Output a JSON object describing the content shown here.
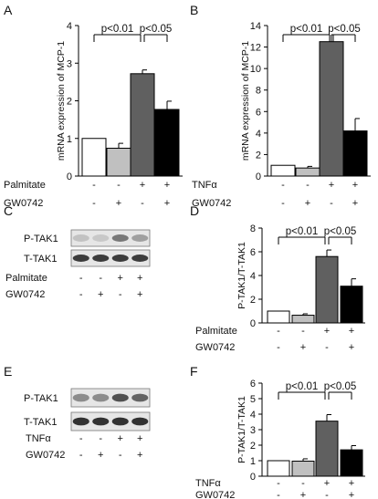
{
  "figure": {
    "panels": [
      "A",
      "B",
      "C",
      "D",
      "E",
      "F"
    ]
  },
  "chart_data": [
    {
      "panel": "A",
      "type": "bar",
      "ylabel": "mRNA expression of MCP-1",
      "ylim": [
        0,
        4
      ],
      "yticks": [
        0,
        1,
        2,
        3,
        4
      ],
      "values": [
        1.0,
        0.74,
        2.72,
        1.77
      ],
      "errors": [
        0,
        0.13,
        0.1,
        0.22
      ],
      "bar_colors": [
        "#ffffff",
        "#c0c0c0",
        "#606060",
        "#000000"
      ],
      "conditions": [
        {
          "name": "Palmitate",
          "marks": [
            "-",
            "-",
            "+",
            "+"
          ]
        },
        {
          "name": "GW0742",
          "marks": [
            "-",
            "+",
            "-",
            "+"
          ]
        }
      ],
      "significance": [
        {
          "label": "p<0.01",
          "from": 0,
          "to": 2
        },
        {
          "label": "p<0.05",
          "from": 2,
          "to": 3
        }
      ]
    },
    {
      "panel": "B",
      "type": "bar",
      "ylabel": "mRNA expression of MCP-1",
      "ylim": [
        0,
        14
      ],
      "yticks": [
        0,
        2,
        4,
        6,
        8,
        10,
        12,
        14
      ],
      "values": [
        1.0,
        0.75,
        12.5,
        4.2
      ],
      "errors": [
        0,
        0.15,
        0.65,
        1.15
      ],
      "bar_colors": [
        "#ffffff",
        "#c0c0c0",
        "#606060",
        "#000000"
      ],
      "conditions": [
        {
          "name": "TNFα",
          "marks": [
            "-",
            "-",
            "+",
            "+"
          ]
        },
        {
          "name": "GW0742",
          "marks": [
            "-",
            "+",
            "-",
            "+"
          ]
        }
      ],
      "significance": [
        {
          "label": "p<0.01",
          "from": 0,
          "to": 2
        },
        {
          "label": "p<0.05",
          "from": 2,
          "to": 3
        }
      ]
    },
    {
      "panel": "D",
      "type": "bar",
      "ylabel": "P-TAK1/T-TAK1",
      "ylim": [
        0,
        8
      ],
      "yticks": [
        0,
        2,
        4,
        6,
        8
      ],
      "values": [
        1.0,
        0.65,
        5.6,
        3.1
      ],
      "errors": [
        0,
        0.12,
        0.55,
        0.62
      ],
      "bar_colors": [
        "#ffffff",
        "#c0c0c0",
        "#606060",
        "#000000"
      ],
      "conditions": [
        {
          "name": "Palmitate",
          "marks": [
            "-",
            "-",
            "+",
            "+"
          ]
        },
        {
          "name": "GW0742",
          "marks": [
            "-",
            "+",
            "-",
            "+"
          ]
        }
      ],
      "significance": [
        {
          "label": "p<0.01",
          "from": 0,
          "to": 2
        },
        {
          "label": "p<0.05",
          "from": 2,
          "to": 3
        }
      ]
    },
    {
      "panel": "F",
      "type": "bar",
      "ylabel": "P-TAK1/T-TAK1",
      "ylim": [
        0,
        6
      ],
      "yticks": [
        0,
        1,
        2,
        3,
        4,
        5,
        6
      ],
      "values": [
        1.0,
        0.97,
        3.55,
        1.7
      ],
      "errors": [
        0,
        0.15,
        0.42,
        0.27
      ],
      "bar_colors": [
        "#ffffff",
        "#c0c0c0",
        "#606060",
        "#000000"
      ],
      "conditions": [
        {
          "name": "TNFα",
          "marks": [
            "-",
            "-",
            "+",
            "+"
          ]
        },
        {
          "name": "GW0742",
          "marks": [
            "-",
            "+",
            "-",
            "+"
          ]
        }
      ],
      "significance": [
        {
          "label": "p<0.01",
          "from": 0,
          "to": 2
        },
        {
          "label": "p<0.05",
          "from": 2,
          "to": 3
        }
      ]
    }
  ],
  "blots": [
    {
      "panel": "C",
      "rows": [
        "P-TAK1",
        "T-TAK1"
      ],
      "band_intensity": [
        [
          0.18,
          0.15,
          0.55,
          0.35
        ],
        [
          0.85,
          0.85,
          0.85,
          0.85
        ]
      ],
      "conditions": [
        {
          "name": "Palmitate",
          "marks": [
            "-",
            "-",
            "+",
            "+"
          ]
        },
        {
          "name": "GW0742",
          "marks": [
            "-",
            "+",
            "-",
            "+"
          ]
        }
      ]
    },
    {
      "panel": "E",
      "rows": [
        "P-TAK1",
        "T-TAK1"
      ],
      "band_intensity": [
        [
          0.45,
          0.45,
          0.75,
          0.65
        ],
        [
          0.9,
          0.9,
          0.9,
          0.9
        ]
      ],
      "conditions": [
        {
          "name": "TNFα",
          "marks": [
            "-",
            "-",
            "+",
            "+"
          ]
        },
        {
          "name": "GW0742",
          "marks": [
            "-",
            "+",
            "-",
            "+"
          ]
        }
      ]
    }
  ]
}
